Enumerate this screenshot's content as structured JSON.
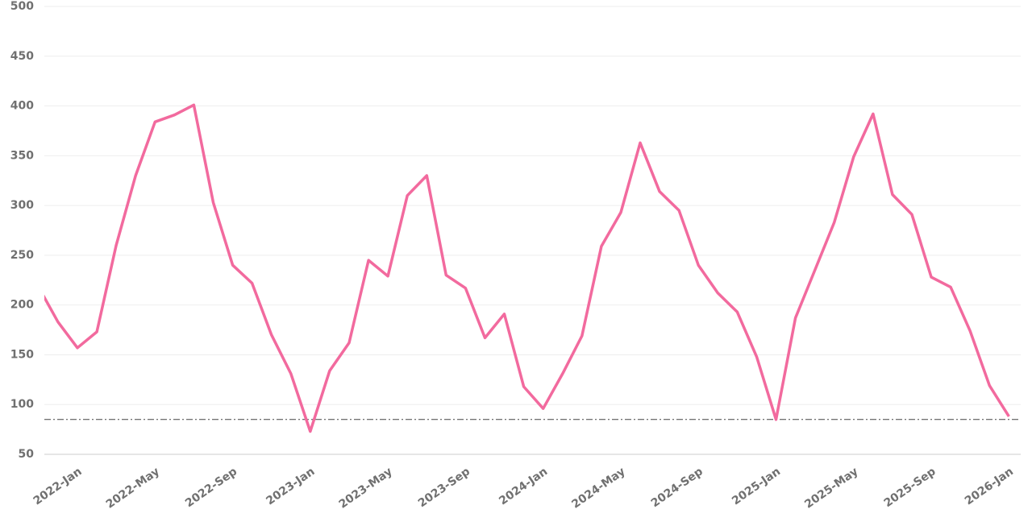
{
  "chart_data": {
    "type": "line",
    "categories": [
      null,
      null,
      "2022-Jan",
      null,
      null,
      null,
      "2022-May",
      null,
      null,
      null,
      "2022-Sep",
      null,
      null,
      null,
      "2023-Jan",
      null,
      null,
      null,
      "2023-May",
      null,
      null,
      null,
      "2023-Sep",
      null,
      null,
      null,
      "2024-Jan",
      null,
      null,
      null,
      "2024-May",
      null,
      null,
      null,
      "2024-Sep",
      null,
      null,
      null,
      "2025-Jan",
      null,
      null,
      null,
      "2025-May",
      null,
      null,
      null,
      "2025-Sep",
      null,
      null,
      null,
      "2026-Jan"
    ],
    "values": [
      218,
      183,
      157,
      173,
      260,
      330,
      384,
      391,
      401,
      303,
      240,
      222,
      170,
      131,
      73,
      134,
      162,
      245,
      229,
      310,
      330,
      230,
      217,
      167,
      191,
      118,
      96,
      131,
      169,
      259,
      293,
      363,
      314,
      295,
      240,
      212,
      193,
      148,
      85,
      187,
      235,
      283,
      349,
      392,
      311,
      291,
      228,
      218,
      174,
      119,
      88
    ],
    "color": "#f26a9e",
    "reference_line": 85,
    "ylim": [
      50,
      500
    ],
    "yticks": [
      50,
      100,
      150,
      200,
      250,
      300,
      350,
      400,
      450,
      500
    ],
    "grid": true
  }
}
